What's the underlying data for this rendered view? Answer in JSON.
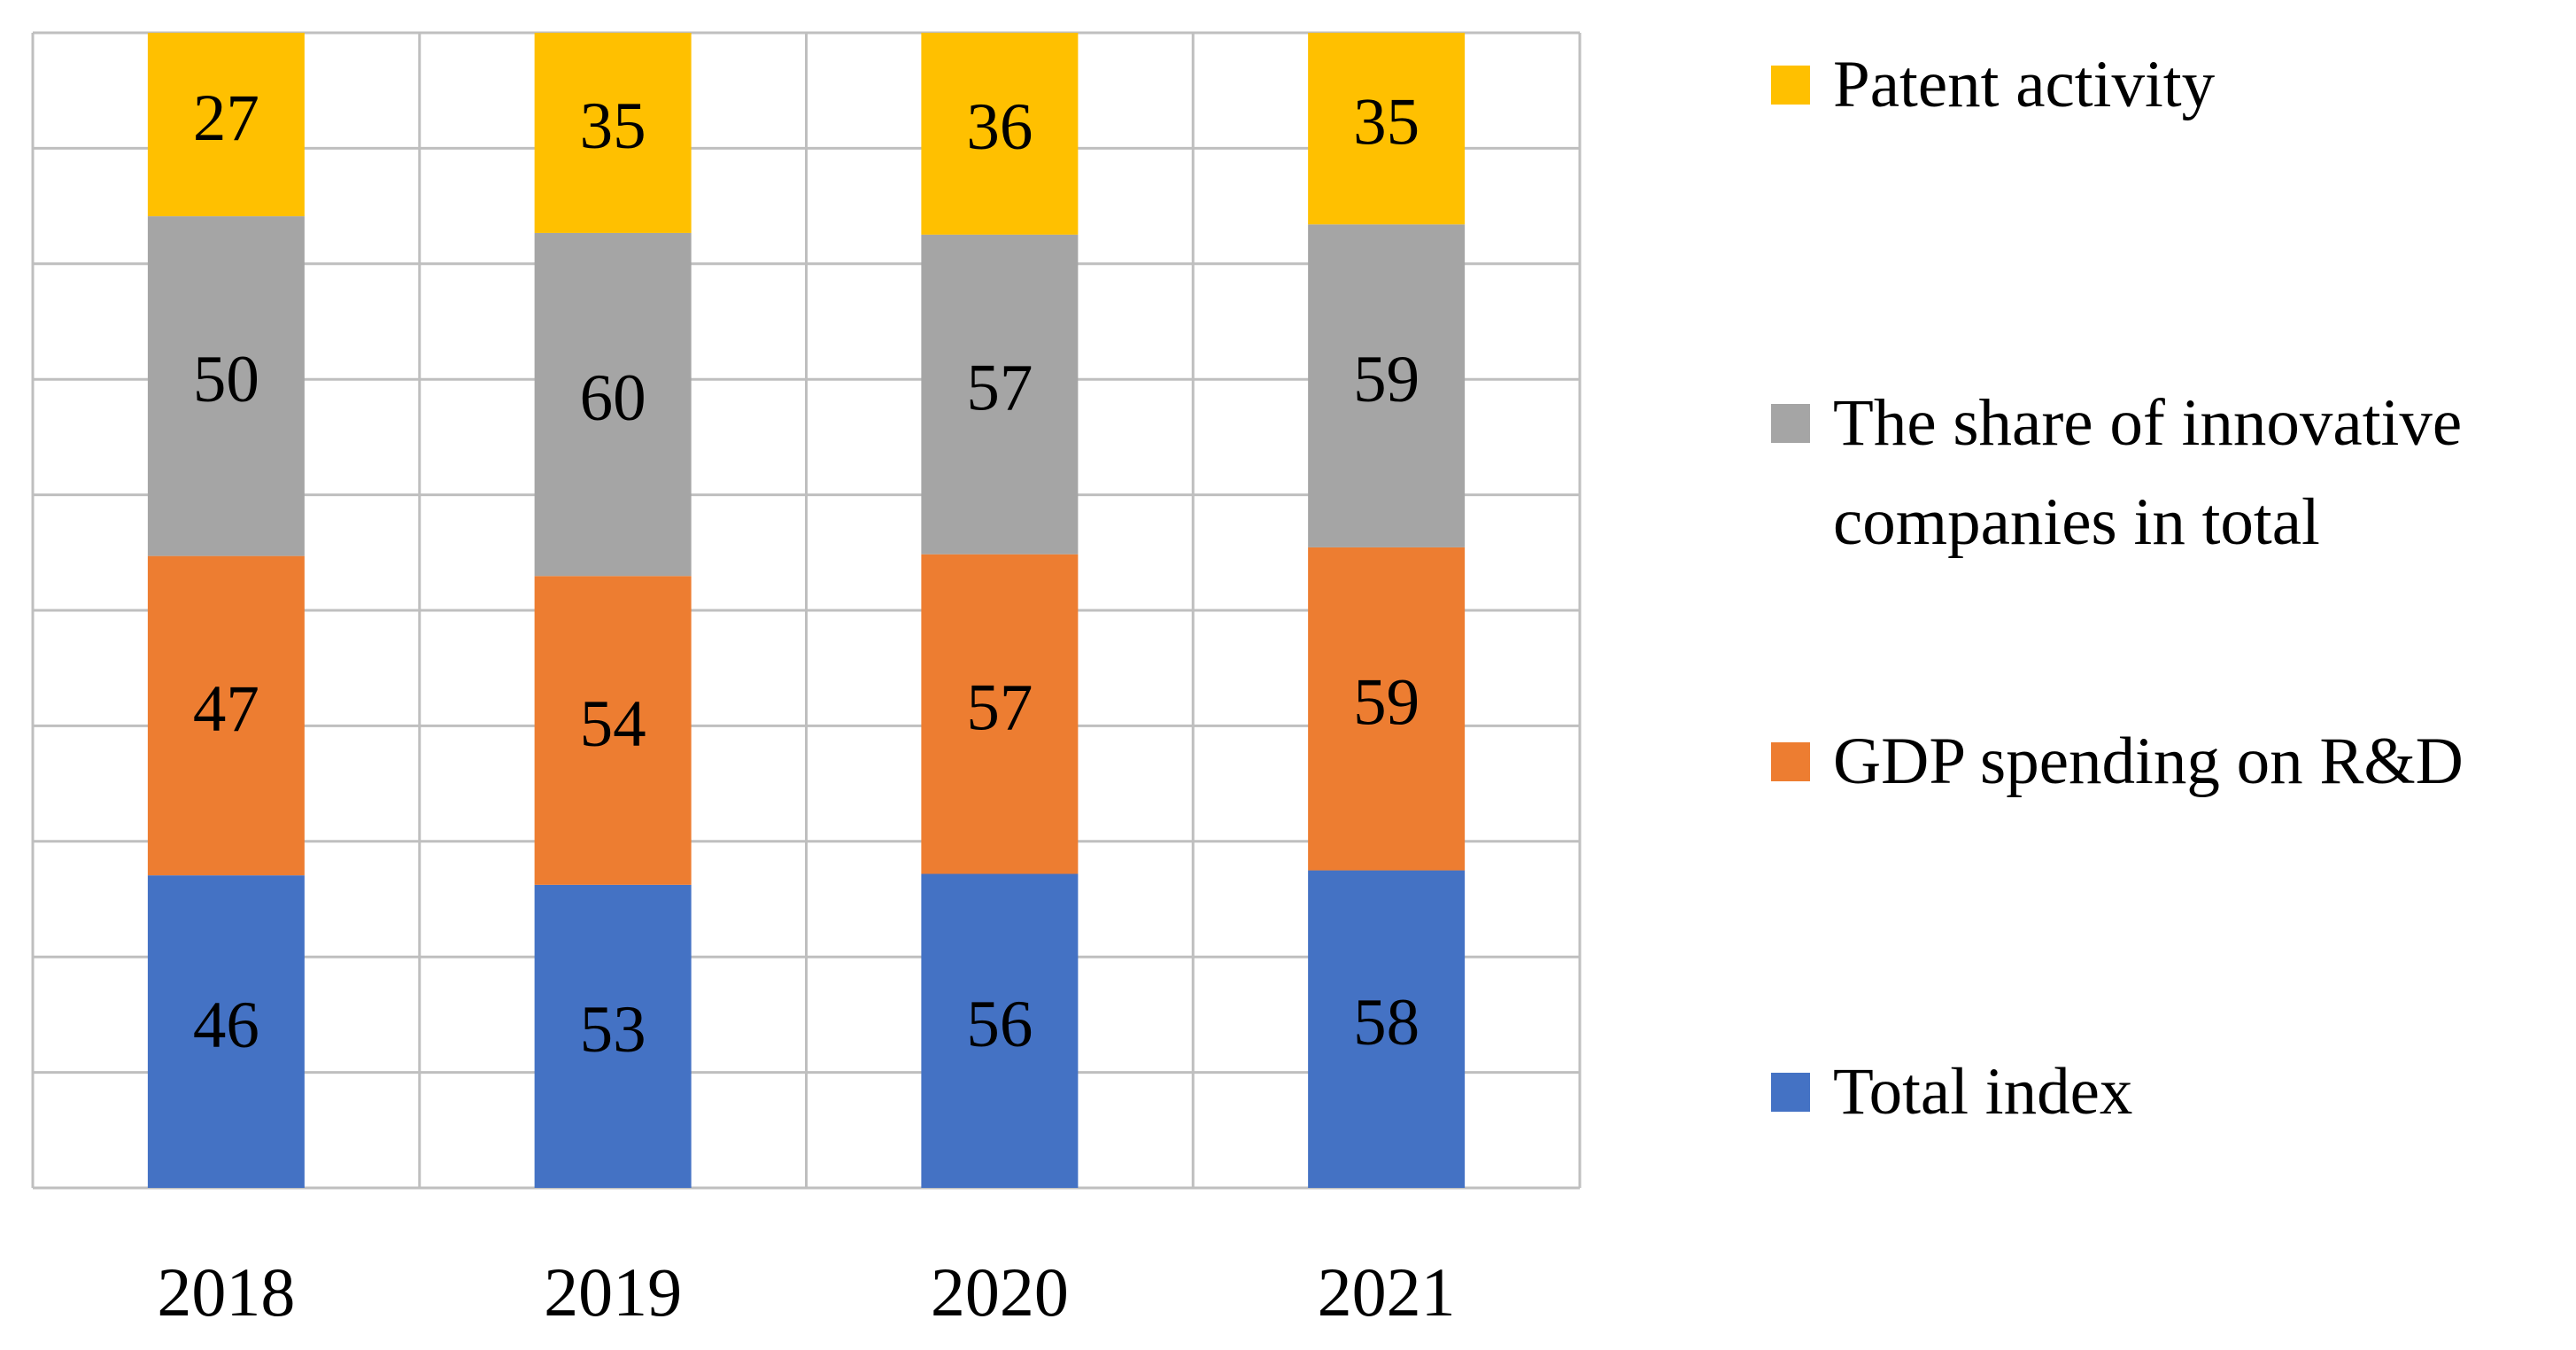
{
  "chart_data": {
    "type": "bar",
    "stacked": "percent",
    "categories": [
      "2018",
      "2019",
      "2020",
      "2021"
    ],
    "series": [
      {
        "name": "Total index",
        "color": "#4472c4",
        "values": [
          46,
          53,
          56,
          58
        ]
      },
      {
        "name": "GDP spending on R&D",
        "color": "#ed7d31",
        "values": [
          47,
          54,
          57,
          59
        ]
      },
      {
        "name": "The share of innovative companies in total",
        "color": "#a5a5a5",
        "values": [
          50,
          60,
          57,
          59
        ]
      },
      {
        "name": "Patent activity",
        "color": "#ffc000",
        "values": [
          27,
          35,
          36,
          35
        ]
      }
    ],
    "ylim": [
      0,
      100
    ],
    "yticks": [
      0,
      10,
      20,
      30,
      40,
      50,
      60,
      70,
      80,
      90,
      100
    ],
    "grid": true,
    "legend": "right"
  }
}
